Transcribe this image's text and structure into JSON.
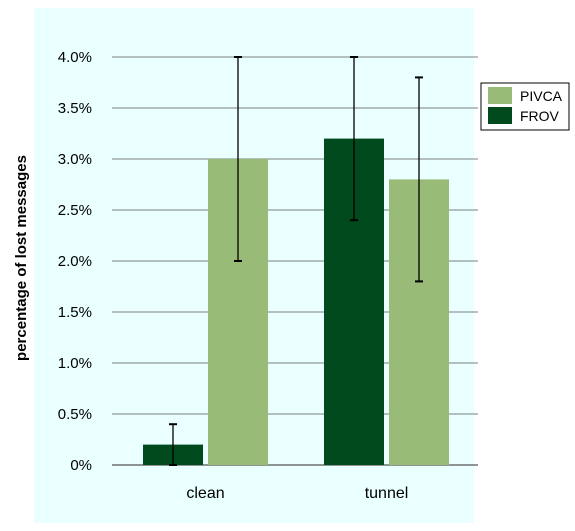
{
  "colors": {
    "plot_background": "#eaffff",
    "PIVCA": "#98bb78",
    "FROV": "#004a1e",
    "gridline": "#555555",
    "errorbar": "#000000"
  },
  "chart_data": {
    "type": "bar",
    "categories": [
      "clean",
      "tunnel"
    ],
    "series": [
      {
        "name": "FROV",
        "values": [
          0.2,
          3.2
        ],
        "error_low": [
          0.0,
          2.4
        ],
        "error_high": [
          0.4,
          4.0
        ]
      },
      {
        "name": "PIVCA",
        "values": [
          3.0,
          2.8
        ],
        "error_low": [
          2.0,
          1.8
        ],
        "error_high": [
          4.0,
          3.8
        ]
      }
    ],
    "ylabel": "percentage of lost messages",
    "ylim": [
      0,
      4.0
    ],
    "yticks": [
      0,
      0.5,
      1.0,
      1.5,
      2.0,
      2.5,
      3.0,
      3.5,
      4.0
    ],
    "ytick_labels": [
      "0%",
      "0.5%",
      "1.0%",
      "1.5%",
      "2.0%",
      "2.5%",
      "3.0%",
      "3.5%",
      "4.0%"
    ],
    "grid": true,
    "legend": {
      "placement": "top-right",
      "entries": [
        "PIVCA",
        "FROV"
      ]
    }
  }
}
